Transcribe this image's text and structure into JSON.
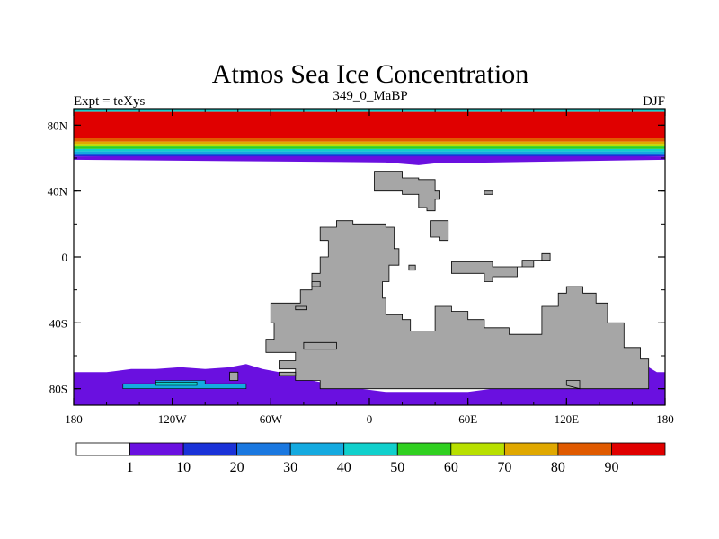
{
  "chart_data": {
    "type": "heatmap",
    "title": "Atmos Sea Ice Concentration",
    "subtitle_center": "349_0_MaBP",
    "subtitle_left": "Expt = teXys",
    "subtitle_right": "DJF",
    "xlabel": "",
    "ylabel": "",
    "xlim": [
      -180,
      180
    ],
    "ylim": [
      -90,
      90
    ],
    "x_ticks": [
      {
        "value": -180,
        "label": "180"
      },
      {
        "value": -120,
        "label": "120W"
      },
      {
        "value": -60,
        "label": "60W"
      },
      {
        "value": 0,
        "label": "0"
      },
      {
        "value": 60,
        "label": "60E"
      },
      {
        "value": 120,
        "label": "120E"
      },
      {
        "value": 180,
        "label": "180"
      }
    ],
    "y_ticks": [
      {
        "value": 80,
        "label": "80N"
      },
      {
        "value": 40,
        "label": "40N"
      },
      {
        "value": 0,
        "label": "0"
      },
      {
        "value": -40,
        "label": "40S"
      },
      {
        "value": -80,
        "label": "80S"
      }
    ],
    "land_color": "#a6a6a6",
    "colorbar": {
      "colors": [
        "#ffffff",
        "#6a10e0",
        "#1a32d8",
        "#1a78e0",
        "#14aae0",
        "#10d0cc",
        "#30d020",
        "#b8e000",
        "#e0a800",
        "#e05a00",
        "#e00000"
      ],
      "labels": [
        "1",
        "10",
        "20",
        "30",
        "40",
        "50",
        "60",
        "70",
        "80",
        "90"
      ]
    },
    "ice_bands_north": [
      {
        "lat_top": 90,
        "lat_bottom": 88,
        "color": "#10d0cc"
      },
      {
        "lat_top": 88,
        "lat_bottom": 72,
        "color": "#e00000"
      },
      {
        "lat_top": 72,
        "lat_bottom": 70,
        "color": "#e05a00"
      },
      {
        "lat_top": 70,
        "lat_bottom": 68.5,
        "color": "#e0a800"
      },
      {
        "lat_top": 68.5,
        "lat_bottom": 67,
        "color": "#b8e000"
      },
      {
        "lat_top": 67,
        "lat_bottom": 65.5,
        "color": "#30d020"
      },
      {
        "lat_top": 65.5,
        "lat_bottom": 64,
        "color": "#10d0cc"
      },
      {
        "lat_top": 64,
        "lat_bottom": 62.5,
        "color": "#14aae0"
      },
      {
        "lat_top": 62.5,
        "lat_bottom": 61,
        "color": "#1a32d8"
      },
      {
        "lat_top": 61,
        "lat_bottom": 59,
        "color": "#6a10e0"
      }
    ],
    "land_polygons": [
      [
        [
          -30,
          -80
        ],
        [
          -30,
          -75
        ],
        [
          -45,
          -75
        ],
        [
          -45,
          -68
        ],
        [
          -55,
          -68
        ],
        [
          -55,
          -63
        ],
        [
          -45,
          -63
        ],
        [
          -45,
          -58
        ],
        [
          -63,
          -58
        ],
        [
          -63,
          -50
        ],
        [
          -58,
          -50
        ],
        [
          -58,
          -40
        ],
        [
          -60,
          -40
        ],
        [
          -60,
          -28
        ],
        [
          -42,
          -28
        ],
        [
          -42,
          -20
        ],
        [
          -35,
          -20
        ],
        [
          -35,
          -10
        ],
        [
          -30,
          -10
        ],
        [
          -30,
          0
        ],
        [
          -25,
          0
        ],
        [
          -25,
          10
        ],
        [
          -30,
          10
        ],
        [
          -30,
          18
        ],
        [
          -20,
          18
        ],
        [
          -20,
          22
        ],
        [
          -10,
          22
        ],
        [
          -10,
          20
        ],
        [
          10,
          20
        ],
        [
          10,
          18
        ],
        [
          15,
          18
        ],
        [
          15,
          5
        ],
        [
          18,
          5
        ],
        [
          18,
          -5
        ],
        [
          12,
          -5
        ],
        [
          12,
          -15
        ],
        [
          8,
          -15
        ],
        [
          8,
          -25
        ],
        [
          10,
          -25
        ],
        [
          10,
          -35
        ],
        [
          20,
          -35
        ],
        [
          20,
          -38
        ],
        [
          25,
          -38
        ],
        [
          25,
          -45
        ],
        [
          40,
          -45
        ],
        [
          40,
          -30
        ],
        [
          50,
          -30
        ],
        [
          50,
          -33
        ],
        [
          60,
          -33
        ],
        [
          60,
          -38
        ],
        [
          70,
          -38
        ],
        [
          70,
          -43
        ],
        [
          85,
          -43
        ],
        [
          85,
          -47
        ],
        [
          105,
          -47
        ],
        [
          105,
          -30
        ],
        [
          115,
          -30
        ],
        [
          115,
          -22
        ],
        [
          120,
          -22
        ],
        [
          120,
          -18
        ],
        [
          130,
          -18
        ],
        [
          130,
          -22
        ],
        [
          138,
          -22
        ],
        [
          138,
          -28
        ],
        [
          145,
          -28
        ],
        [
          145,
          -40
        ],
        [
          155,
          -40
        ],
        [
          155,
          -55
        ],
        [
          165,
          -55
        ],
        [
          165,
          -62
        ],
        [
          170,
          -62
        ],
        [
          170,
          -80
        ]
      ],
      [
        [
          -40,
          -52
        ],
        [
          -40,
          -56
        ],
        [
          -20,
          -56
        ],
        [
          -20,
          -52
        ]
      ],
      [
        [
          3,
          52
        ],
        [
          3,
          40
        ],
        [
          20,
          40
        ],
        [
          20,
          38
        ],
        [
          30,
          38
        ],
        [
          30,
          30
        ],
        [
          35,
          30
        ],
        [
          35,
          28
        ],
        [
          40,
          28
        ],
        [
          40,
          35
        ],
        [
          43,
          35
        ],
        [
          43,
          40
        ],
        [
          40,
          40
        ],
        [
          40,
          47
        ],
        [
          30,
          47
        ],
        [
          30,
          48
        ],
        [
          20,
          48
        ],
        [
          20,
          52
        ]
      ],
      [
        [
          37,
          22
        ],
        [
          37,
          12
        ],
        [
          43,
          12
        ],
        [
          43,
          10
        ],
        [
          48,
          10
        ],
        [
          48,
          22
        ]
      ],
      [
        [
          50,
          -5
        ],
        [
          50,
          -10
        ],
        [
          70,
          -10
        ],
        [
          70,
          -15
        ],
        [
          75,
          -15
        ],
        [
          75,
          -12
        ],
        [
          90,
          -12
        ],
        [
          90,
          -6
        ],
        [
          100,
          -6
        ],
        [
          100,
          -2
        ],
        [
          110,
          -2
        ],
        [
          110,
          2
        ],
        [
          105,
          2
        ],
        [
          105,
          -2
        ],
        [
          93,
          -2
        ],
        [
          93,
          -6
        ],
        [
          75,
          -6
        ],
        [
          75,
          -3
        ],
        [
          50,
          -3
        ]
      ],
      [
        [
          120,
          -78
        ],
        [
          120,
          -75
        ],
        [
          128,
          -75
        ],
        [
          128,
          -80
        ]
      ],
      [
        [
          -85,
          -75
        ],
        [
          -85,
          -70
        ],
        [
          -80,
          -70
        ],
        [
          -80,
          -75
        ]
      ],
      [
        [
          -55,
          -72
        ],
        [
          -55,
          -70
        ],
        [
          -45,
          -70
        ],
        [
          -45,
          -72
        ]
      ],
      [
        [
          -45,
          -32
        ],
        [
          -45,
          -30
        ],
        [
          -38,
          -30
        ],
        [
          -38,
          -32
        ]
      ],
      [
        [
          -35,
          -18
        ],
        [
          -35,
          -15
        ],
        [
          -30,
          -15
        ],
        [
          -30,
          -18
        ]
      ],
      [
        [
          24,
          -8
        ],
        [
          24,
          -5
        ],
        [
          28,
          -5
        ],
        [
          28,
          -8
        ]
      ],
      [
        [
          70,
          40
        ],
        [
          70,
          38
        ],
        [
          75,
          38
        ],
        [
          75,
          40
        ]
      ]
    ],
    "ice_polygons_south": [
      [
        [
          -180,
          -70
        ],
        [
          -180,
          -90
        ],
        [
          180,
          -90
        ],
        [
          180,
          -70
        ],
        [
          175,
          -70
        ],
        [
          170,
          -67
        ],
        [
          165,
          -63
        ],
        [
          150,
          -63
        ],
        [
          145,
          -65
        ],
        [
          140,
          -70
        ],
        [
          130,
          -72
        ],
        [
          120,
          -70
        ],
        [
          110,
          -72
        ],
        [
          100,
          -75
        ],
        [
          90,
          -78
        ],
        [
          60,
          -82
        ],
        [
          30,
          -82
        ],
        [
          10,
          -82
        ],
        [
          -5,
          -80
        ],
        [
          -20,
          -80
        ],
        [
          -25,
          -77
        ],
        [
          -35,
          -75
        ],
        [
          -45,
          -72
        ],
        [
          -55,
          -70
        ],
        [
          -65,
          -68
        ],
        [
          -75,
          -65
        ],
        [
          -85,
          -67
        ],
        [
          -100,
          -68
        ],
        [
          -115,
          -67
        ],
        [
          -130,
          -68
        ],
        [
          -145,
          -68
        ],
        [
          -160,
          -70
        ],
        [
          -175,
          -70
        ]
      ]
    ],
    "ice_inner_south": [
      {
        "points": [
          [
            -150,
            -80
          ],
          [
            -150,
            -77
          ],
          [
            -130,
            -77
          ],
          [
            -130,
            -75
          ],
          [
            -100,
            -75
          ],
          [
            -100,
            -77
          ],
          [
            -75,
            -77
          ],
          [
            -75,
            -80
          ]
        ],
        "color": "#14aae0"
      },
      {
        "points": [
          [
            -130,
            -78
          ],
          [
            -130,
            -76
          ],
          [
            -105,
            -76
          ],
          [
            -105,
            -78
          ]
        ],
        "color": "#10d0cc"
      },
      {
        "points": [
          [
            145,
            -77
          ],
          [
            145,
            -76
          ],
          [
            160,
            -76
          ],
          [
            160,
            -80
          ],
          [
            150,
            -80
          ]
        ],
        "color": "#1a78e0"
      }
    ]
  }
}
